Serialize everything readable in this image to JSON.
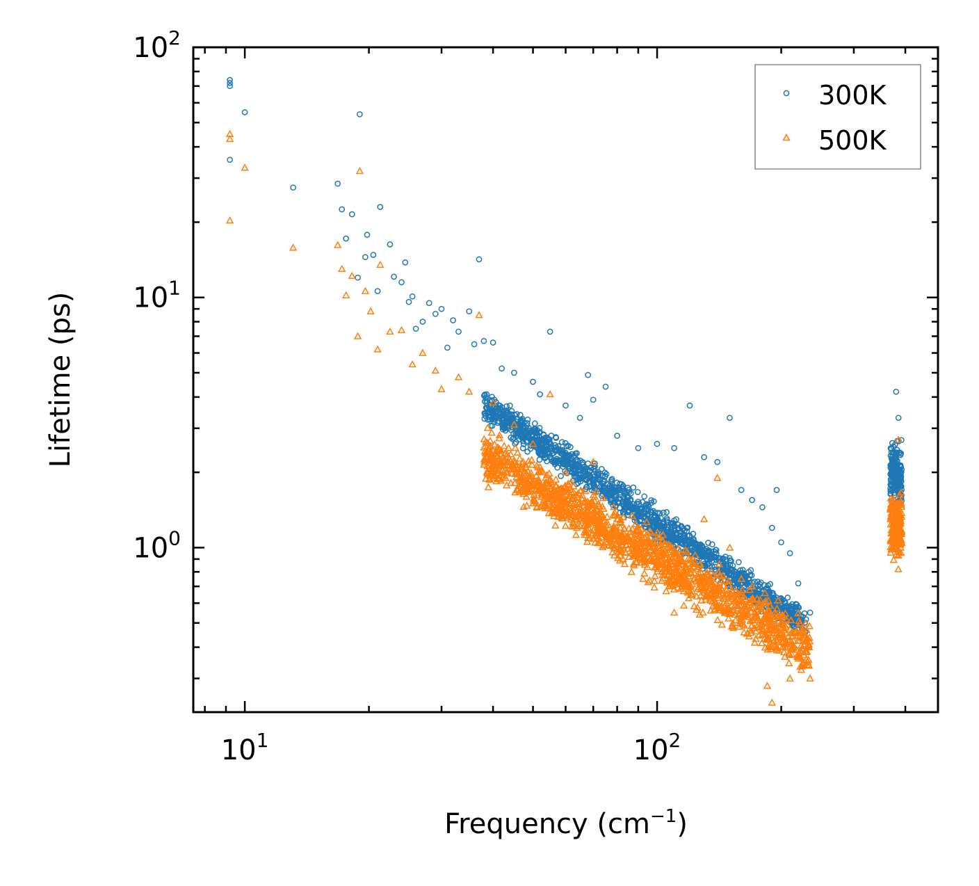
{
  "chart_data": {
    "type": "scatter",
    "x_scale": "log",
    "y_scale": "log",
    "xlabel": "Frequency (cm",
    "xlabel_sup": "−1",
    "xlabel_end": ")",
    "ylabel": "Lifetime (ps)",
    "xlim": [
      7.5,
      480
    ],
    "ylim": [
      0.22,
      100
    ],
    "x_ticks": [
      {
        "base": "10",
        "exp": "1",
        "value": 10
      },
      {
        "base": "10",
        "exp": "2",
        "value": 100
      }
    ],
    "y_ticks": [
      {
        "base": "10",
        "exp": "0",
        "value": 1
      },
      {
        "base": "10",
        "exp": "1",
        "value": 10
      },
      {
        "base": "10",
        "exp": "2",
        "value": 100
      }
    ],
    "legend_position": "top-right",
    "series": [
      {
        "name": "300K",
        "color": "#1f77b4",
        "marker": "circle",
        "anchor_points": [
          [
            9.2,
            74
          ],
          [
            9.2,
            72
          ],
          [
            9.2,
            70
          ],
          [
            9.2,
            35.5
          ],
          [
            10.0,
            55
          ],
          [
            13.1,
            27.5
          ],
          [
            16.8,
            28.5
          ],
          [
            17.2,
            22.5
          ],
          [
            17.6,
            17.2
          ],
          [
            18.2,
            21.5
          ],
          [
            18.8,
            12
          ],
          [
            19.0,
            54
          ],
          [
            19.6,
            14.5
          ],
          [
            19.8,
            17.8
          ],
          [
            20.5,
            14.8
          ],
          [
            21.0,
            10.6
          ],
          [
            21.3,
            23
          ],
          [
            22.5,
            16.3
          ],
          [
            23.0,
            12.1
          ],
          [
            24.0,
            11.5
          ],
          [
            24.5,
            13.8
          ],
          [
            25.0,
            9.6
          ],
          [
            25.5,
            10.1
          ],
          [
            26.0,
            7.5
          ],
          [
            27.0,
            8.0
          ],
          [
            28.0,
            9.5
          ],
          [
            29.0,
            8.6
          ],
          [
            30.0,
            9.0
          ],
          [
            31.0,
            6.3
          ],
          [
            32.0,
            8.1
          ],
          [
            33.0,
            7.3
          ],
          [
            35.0,
            8.8
          ],
          [
            36.0,
            6.5
          ],
          [
            37.0,
            14.2
          ],
          [
            38.0,
            6.7
          ],
          [
            40.0,
            6.6
          ],
          [
            42.0,
            5.2
          ],
          [
            45.0,
            5.0
          ],
          [
            50.0,
            4.6
          ],
          [
            52.0,
            4.1
          ],
          [
            55.0,
            7.3
          ],
          [
            60.0,
            3.7
          ],
          [
            65.0,
            3.3
          ],
          [
            68.0,
            4.9
          ],
          [
            70.0,
            3.9
          ],
          [
            75.0,
            4.4
          ],
          [
            80.0,
            2.8
          ],
          [
            90.0,
            2.5
          ],
          [
            100.0,
            2.6
          ],
          [
            110.0,
            2.5
          ],
          [
            120.0,
            3.7
          ],
          [
            130.0,
            2.3
          ],
          [
            140.0,
            2.2
          ],
          [
            150.0,
            3.3
          ],
          [
            160.0,
            1.7
          ],
          [
            170.0,
            1.55
          ],
          [
            180.0,
            1.45
          ],
          [
            190.0,
            1.2
          ],
          [
            195.0,
            1.7
          ],
          [
            200.0,
            1.05
          ],
          [
            210.0,
            0.95
          ],
          [
            220.0,
            0.72
          ],
          [
            235.0,
            0.55
          ],
          [
            370.0,
            2.4
          ],
          [
            380.0,
            4.2
          ],
          [
            385.0,
            3.3
          ]
        ],
        "bands": [
          {
            "x_range": [
              38,
              230
            ],
            "y_start": [
              4.6,
              3.0
            ],
            "y_end": [
              0.6,
              0.4
            ],
            "count": 1400
          },
          {
            "x_range": [
              368,
              392
            ],
            "y_start": [
              2.9,
              1.3
            ],
            "y_end": [
              2.9,
              1.3
            ],
            "count": 180
          }
        ]
      },
      {
        "name": "500K",
        "color": "#ff7f0e",
        "marker": "triangle",
        "anchor_points": [
          [
            9.2,
            45
          ],
          [
            9.2,
            43
          ],
          [
            9.2,
            20.3
          ],
          [
            10.0,
            33
          ],
          [
            13.1,
            15.8
          ],
          [
            16.8,
            16.2
          ],
          [
            17.2,
            13
          ],
          [
            17.6,
            10.2
          ],
          [
            18.2,
            12.2
          ],
          [
            18.8,
            7.0
          ],
          [
            19.0,
            32
          ],
          [
            19.6,
            10.6
          ],
          [
            20.2,
            8.8
          ],
          [
            21.0,
            6.2
          ],
          [
            21.3,
            13.5
          ],
          [
            22.5,
            7.3
          ],
          [
            24.0,
            7.4
          ],
          [
            25.5,
            5.4
          ],
          [
            27.0,
            6.0
          ],
          [
            29.0,
            5.1
          ],
          [
            30.0,
            4.3
          ],
          [
            33.0,
            4.8
          ],
          [
            35.0,
            4.2
          ],
          [
            37.0,
            8.5
          ],
          [
            40.0,
            3.8
          ],
          [
            45.0,
            3.1
          ],
          [
            50.0,
            2.6
          ],
          [
            55.0,
            4.1
          ],
          [
            60.0,
            2.0
          ],
          [
            70.0,
            2.2
          ],
          [
            80.0,
            1.3
          ],
          [
            90.0,
            1.2
          ],
          [
            100.0,
            1.1
          ],
          [
            110.0,
            0.55
          ],
          [
            120.0,
            0.9
          ],
          [
            130.0,
            1.3
          ],
          [
            140.0,
            1.9
          ],
          [
            150.0,
            1.0
          ],
          [
            160.0,
            0.75
          ],
          [
            170.0,
            0.7
          ],
          [
            180.0,
            0.45
          ],
          [
            185.0,
            0.28
          ],
          [
            190.0,
            0.24
          ],
          [
            200.0,
            0.45
          ],
          [
            210.0,
            0.3
          ],
          [
            220.0,
            0.36
          ],
          [
            235.0,
            0.3
          ],
          [
            375.0,
            1.5
          ],
          [
            385.0,
            2.7
          ],
          [
            390.0,
            1.0
          ]
        ],
        "bands": [
          {
            "x_range": [
              38,
              235
            ],
            "y_start": [
              3.2,
              1.7
            ],
            "y_end": [
              0.55,
              0.28
            ],
            "count": 1500
          },
          {
            "x_range": [
              368,
              392
            ],
            "y_start": [
              1.8,
              0.8
            ],
            "y_end": [
              1.8,
              0.8
            ],
            "count": 180
          }
        ]
      }
    ]
  }
}
